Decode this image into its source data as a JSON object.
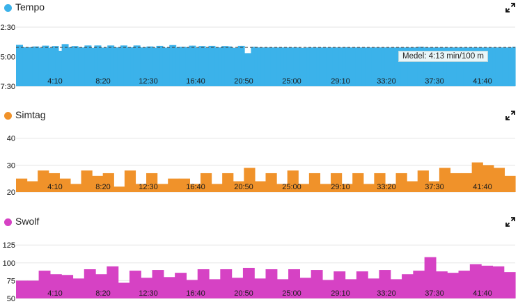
{
  "panels": [
    {
      "title": "Tempo",
      "color": "#3bb2ea",
      "expand_icon": "expand-arrows-icon"
    },
    {
      "title": "Simtag",
      "color": "#f0922a",
      "expand_icon": "expand-arrows-icon"
    },
    {
      "title": "Swolf",
      "color": "#d642c4",
      "expand_icon": "expand-arrows-icon"
    }
  ],
  "tooltip": {
    "label": "Medel:",
    "value": "4:13 min/100 m"
  },
  "chart_data": [
    {
      "type": "area",
      "title": "Tempo",
      "x_tick_labels": [
        "4:10",
        "8:20",
        "12:30",
        "16:40",
        "20:50",
        "25:00",
        "29:10",
        "33:20",
        "37:30",
        "41:40"
      ],
      "y_tick_labels": [
        "2:30",
        "5:00",
        "7:30"
      ],
      "ylim_seconds": [
        150,
        450
      ],
      "y_inverted": true,
      "average_seconds": 253,
      "average_label": "4:13 min/100 m",
      "values_seconds": [
        240,
        240,
        252,
        252,
        252,
        248,
        248,
        255,
        244,
        244,
        255,
        246,
        246,
        270,
        236,
        236,
        252,
        246,
        246,
        253,
        253,
        243,
        243,
        255,
        243,
        243,
        254,
        254,
        243,
        243,
        253,
        253,
        243,
        243,
        252,
        252,
        243,
        243,
        253,
        253,
        248,
        248,
        255,
        245,
        245,
        254,
        254,
        241,
        241,
        253,
        250,
        250,
        253,
        244,
        244,
        255,
        246,
        246,
        255,
        245,
        245,
        253,
        253,
        246,
        246,
        248,
        255,
        255,
        245,
        245,
        282,
        282,
        250,
        250,
        253,
        253,
        253,
        253,
        253,
        253,
        253,
        253,
        253,
        253,
        253,
        253,
        253,
        255,
        255,
        253,
        253,
        253,
        253,
        253,
        253,
        253,
        253,
        253,
        253,
        253,
        252,
        252,
        253,
        253,
        253,
        253,
        253,
        253,
        253,
        253,
        253,
        253,
        253,
        253,
        253,
        253,
        253,
        253,
        253,
        253,
        253,
        253,
        253,
        250,
        250,
        253,
        253,
        253,
        253,
        253,
        253,
        253,
        253,
        253,
        253,
        253,
        253,
        253,
        253,
        253,
        253,
        253,
        253,
        253,
        253,
        253,
        253,
        253,
        253,
        253,
        253,
        253,
        250
      ]
    },
    {
      "type": "area",
      "title": "Simtag",
      "x_tick_labels": [
        "4:10",
        "8:20",
        "12:30",
        "16:40",
        "20:50",
        "25:00",
        "29:10",
        "33:20",
        "37:30",
        "41:40"
      ],
      "y_tick_labels": [
        "20",
        "30",
        "40"
      ],
      "ylim": [
        20,
        42
      ],
      "values": [
        25,
        24,
        28,
        27,
        25,
        23,
        28,
        26,
        27,
        22,
        28,
        23,
        27,
        23,
        25,
        25,
        23,
        27,
        23,
        27,
        24,
        29,
        24,
        27,
        23,
        28,
        23,
        27,
        23,
        27,
        23,
        27,
        23,
        27,
        23,
        27,
        24,
        28,
        24,
        29,
        27,
        27,
        31,
        30,
        29,
        26
      ]
    },
    {
      "type": "area",
      "title": "Swolf",
      "x_tick_labels": [
        "4:10",
        "8:20",
        "12:30",
        "16:40",
        "20:50",
        "25:00",
        "29:10",
        "33:20",
        "37:30",
        "41:40"
      ],
      "y_tick_labels": [
        "50",
        "75",
        "100",
        "125"
      ],
      "ylim": [
        50,
        135
      ],
      "values": [
        75,
        75,
        89,
        84,
        83,
        78,
        91,
        84,
        95,
        72,
        89,
        79,
        90,
        80,
        86,
        76,
        91,
        77,
        91,
        79,
        93,
        78,
        91,
        77,
        91,
        79,
        90,
        76,
        88,
        77,
        88,
        78,
        90,
        77,
        84,
        89,
        108,
        88,
        86,
        89,
        98,
        96,
        95,
        87
      ]
    }
  ]
}
